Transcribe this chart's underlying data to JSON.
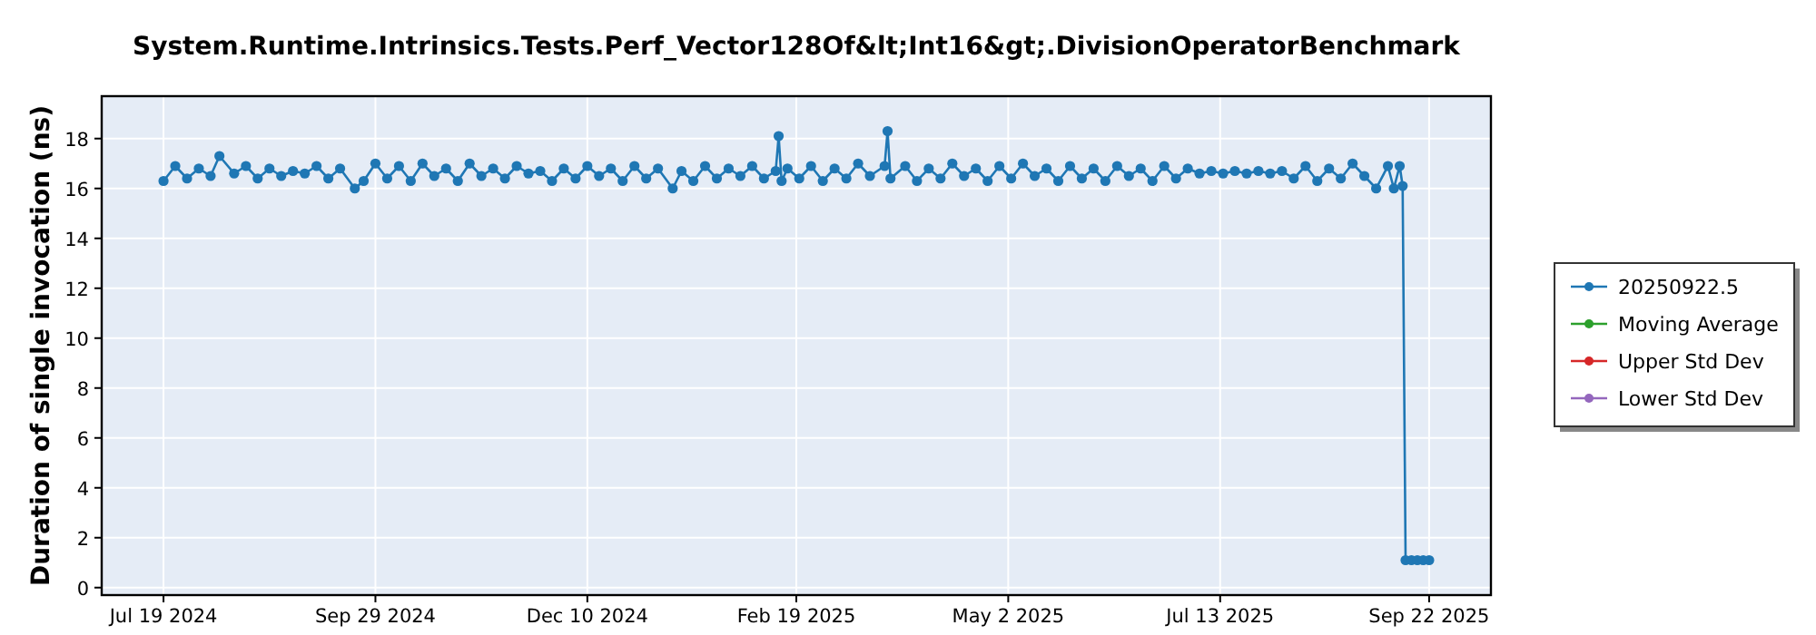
{
  "chart_data": {
    "type": "line",
    "title": "System.Runtime.Intrinsics.Tests.Perf_Vector128Of&lt;Int16&gt;.DivisionOperatorBenchmark",
    "ylabel": "Duration of single invocation (ns)",
    "x": [
      "2024-07-19",
      "2024-07-23",
      "2024-07-27",
      "2024-07-31",
      "2024-08-04",
      "2024-08-07",
      "2024-08-12",
      "2024-08-16",
      "2024-08-20",
      "2024-08-24",
      "2024-08-28",
      "2024-09-01",
      "2024-09-05",
      "2024-09-09",
      "2024-09-13",
      "2024-09-17",
      "2024-09-22",
      "2024-09-25",
      "2024-09-29",
      "2024-10-03",
      "2024-10-07",
      "2024-10-11",
      "2024-10-15",
      "2024-10-19",
      "2024-10-23",
      "2024-10-27",
      "2024-10-31",
      "2024-11-04",
      "2024-11-08",
      "2024-11-12",
      "2024-11-16",
      "2024-11-20",
      "2024-11-24",
      "2024-11-28",
      "2024-12-02",
      "2024-12-06",
      "2024-12-10",
      "2024-12-14",
      "2024-12-18",
      "2024-12-22",
      "2024-12-26",
      "2024-12-30",
      "2025-01-03",
      "2025-01-08",
      "2025-01-11",
      "2025-01-15",
      "2025-01-19",
      "2025-01-23",
      "2025-01-27",
      "2025-01-31",
      "2025-02-04",
      "2025-02-08",
      "2025-02-12",
      "2025-02-13",
      "2025-02-14",
      "2025-02-16",
      "2025-02-20",
      "2025-02-24",
      "2025-02-28",
      "2025-03-04",
      "2025-03-08",
      "2025-03-12",
      "2025-03-16",
      "2025-03-21",
      "2025-03-22",
      "2025-03-23",
      "2025-03-28",
      "2025-04-01",
      "2025-04-05",
      "2025-04-09",
      "2025-04-13",
      "2025-04-17",
      "2025-04-21",
      "2025-04-25",
      "2025-04-29",
      "2025-05-03",
      "2025-05-07",
      "2025-05-11",
      "2025-05-15",
      "2025-05-19",
      "2025-05-23",
      "2025-05-27",
      "2025-05-31",
      "2025-06-04",
      "2025-06-08",
      "2025-06-12",
      "2025-06-16",
      "2025-06-20",
      "2025-06-24",
      "2025-06-28",
      "2025-07-02",
      "2025-07-06",
      "2025-07-10",
      "2025-07-14",
      "2025-07-18",
      "2025-07-22",
      "2025-07-26",
      "2025-07-30",
      "2025-08-03",
      "2025-08-07",
      "2025-08-11",
      "2025-08-15",
      "2025-08-19",
      "2025-08-23",
      "2025-08-27",
      "2025-08-31",
      "2025-09-04",
      "2025-09-08",
      "2025-09-10",
      "2025-09-12",
      "2025-09-13",
      "2025-09-14",
      "2025-09-16",
      "2025-09-18",
      "2025-09-20",
      "2025-09-22"
    ],
    "series": [
      {
        "name": "20250922.5",
        "color": "#1f77b4",
        "values": [
          16.3,
          16.9,
          16.4,
          16.8,
          16.5,
          17.3,
          16.6,
          16.9,
          16.4,
          16.8,
          16.5,
          16.7,
          16.6,
          16.9,
          16.4,
          16.8,
          16.0,
          16.3,
          17.0,
          16.4,
          16.9,
          16.3,
          17.0,
          16.5,
          16.8,
          16.3,
          17.0,
          16.5,
          16.8,
          16.4,
          16.9,
          16.6,
          16.7,
          16.3,
          16.8,
          16.4,
          16.9,
          16.5,
          16.8,
          16.3,
          16.9,
          16.4,
          16.8,
          16.0,
          16.7,
          16.3,
          16.9,
          16.4,
          16.8,
          16.5,
          16.9,
          16.4,
          16.7,
          18.1,
          16.3,
          16.8,
          16.4,
          16.9,
          16.3,
          16.8,
          16.4,
          17.0,
          16.5,
          16.9,
          18.3,
          16.4,
          16.9,
          16.3,
          16.8,
          16.4,
          17.0,
          16.5,
          16.8,
          16.3,
          16.9,
          16.4,
          17.0,
          16.5,
          16.8,
          16.3,
          16.9,
          16.4,
          16.8,
          16.3,
          16.9,
          16.5,
          16.8,
          16.3,
          16.9,
          16.4,
          16.8,
          16.6,
          16.7,
          16.6,
          16.7,
          16.6,
          16.7,
          16.6,
          16.7,
          16.4,
          16.9,
          16.3,
          16.8,
          16.4,
          17.0,
          16.5,
          16.0,
          16.9,
          16.0,
          16.9,
          16.1,
          1.1,
          1.1,
          1.1,
          1.1,
          1.1
        ]
      },
      {
        "name": "Moving Average",
        "color": "#2ca02c",
        "values": [
          null,
          null,
          null,
          null,
          null,
          null,
          null,
          null,
          null,
          null,
          null,
          null,
          null,
          null,
          null,
          null,
          null,
          null,
          null,
          null,
          null,
          null,
          null,
          null,
          null,
          null,
          null,
          null,
          null,
          null,
          null,
          null,
          null,
          null,
          null,
          null,
          null,
          null,
          null,
          null,
          null,
          null,
          null,
          null,
          null,
          null,
          null,
          null,
          null,
          null,
          null,
          null,
          null,
          null,
          null,
          null,
          null,
          null,
          null,
          null,
          null,
          null,
          null,
          null,
          null,
          null,
          null,
          null,
          null,
          null,
          null,
          null,
          null,
          null,
          null,
          null,
          null,
          null,
          null,
          null,
          null,
          null,
          null,
          null,
          null,
          null,
          null,
          null,
          null,
          null,
          null,
          null,
          null,
          null,
          null,
          null,
          null,
          null,
          null,
          null,
          null,
          null,
          null,
          null,
          null,
          null,
          null,
          null,
          null,
          null,
          null,
          null,
          null,
          null,
          null,
          null
        ]
      },
      {
        "name": "Upper Std Dev",
        "color": "#d62728",
        "values": [
          null,
          null,
          null,
          null,
          null,
          null,
          null,
          null,
          null,
          null,
          null,
          null,
          null,
          null,
          null,
          null,
          null,
          null,
          null,
          null,
          null,
          null,
          null,
          null,
          null,
          null,
          null,
          null,
          null,
          null,
          null,
          null,
          null,
          null,
          null,
          null,
          null,
          null,
          null,
          null,
          null,
          null,
          null,
          null,
          null,
          null,
          null,
          null,
          null,
          null,
          null,
          null,
          null,
          null,
          null,
          null,
          null,
          null,
          null,
          null,
          null,
          null,
          null,
          null,
          null,
          null,
          null,
          null,
          null,
          null,
          null,
          null,
          null,
          null,
          null,
          null,
          null,
          null,
          null,
          null,
          null,
          null,
          null,
          null,
          null,
          null,
          null,
          null,
          null,
          null,
          null,
          null,
          null,
          null,
          null,
          null,
          null,
          null,
          null,
          null,
          null,
          null,
          null,
          null,
          null,
          null,
          null,
          null,
          null,
          null,
          null,
          null,
          null,
          null,
          null,
          null
        ]
      },
      {
        "name": "Lower Std Dev",
        "color": "#9467bd",
        "values": [
          null,
          null,
          null,
          null,
          null,
          null,
          null,
          null,
          null,
          null,
          null,
          null,
          null,
          null,
          null,
          null,
          null,
          null,
          null,
          null,
          null,
          null,
          null,
          null,
          null,
          null,
          null,
          null,
          null,
          null,
          null,
          null,
          null,
          null,
          null,
          null,
          null,
          null,
          null,
          null,
          null,
          null,
          null,
          null,
          null,
          null,
          null,
          null,
          null,
          null,
          null,
          null,
          null,
          null,
          null,
          null,
          null,
          null,
          null,
          null,
          null,
          null,
          null,
          null,
          null,
          null,
          null,
          null,
          null,
          null,
          null,
          null,
          null,
          null,
          null,
          null,
          null,
          null,
          null,
          null,
          null,
          null,
          null,
          null,
          null,
          null,
          null,
          null,
          null,
          null,
          null,
          null,
          null,
          null,
          null,
          null,
          null,
          null,
          null,
          null,
          null,
          null,
          null,
          null,
          null,
          null,
          null,
          null,
          null,
          null,
          null,
          null,
          null,
          null,
          null,
          null
        ]
      }
    ],
    "xlim": [
      "2024-06-28",
      "2025-10-13"
    ],
    "xticks": [
      {
        "value": "2024-07-19",
        "label": "Jul 19 2024"
      },
      {
        "value": "2024-09-29",
        "label": "Sep 29 2024"
      },
      {
        "value": "2024-12-10",
        "label": "Dec 10 2024"
      },
      {
        "value": "2025-02-19",
        "label": "Feb 19 2025"
      },
      {
        "value": "2025-05-02",
        "label": "May 2 2025"
      },
      {
        "value": "2025-07-13",
        "label": "Jul 13 2025"
      },
      {
        "value": "2025-09-22",
        "label": "Sep 22 2025"
      }
    ],
    "ylim": [
      -0.3,
      19.7
    ],
    "yticks": [
      0,
      2,
      4,
      6,
      8,
      10,
      12,
      14,
      16,
      18
    ],
    "grid": true,
    "legend": "right",
    "marker": "circle"
  }
}
